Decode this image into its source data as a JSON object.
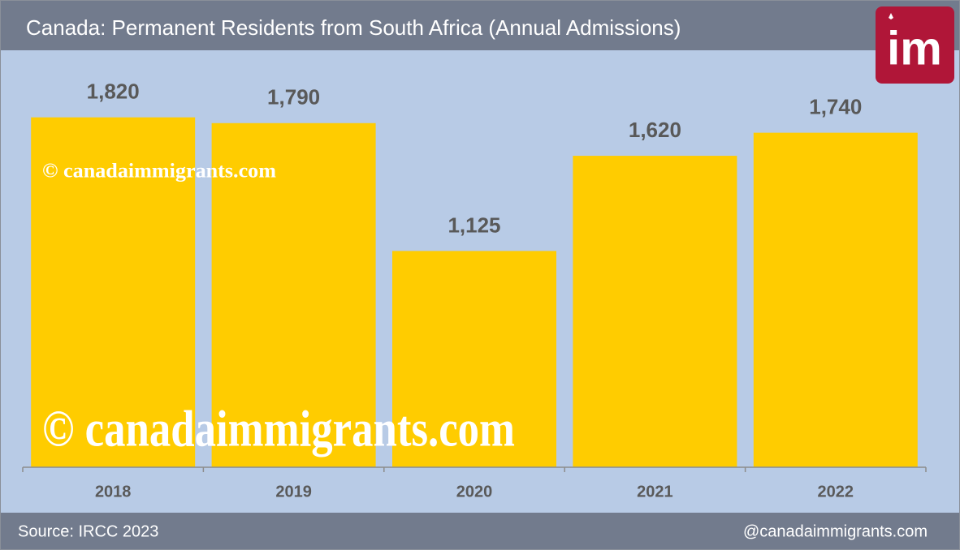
{
  "chart_data": {
    "type": "bar",
    "title": "Canada: Permanent Residents from South Africa (Annual Admissions)",
    "categories": [
      "2018",
      "2019",
      "2020",
      "2021",
      "2022"
    ],
    "values": [
      1820,
      1790,
      1125,
      1620,
      1740
    ],
    "value_labels": [
      "1,820",
      "1,790",
      "1,125",
      "1,620",
      "1,740"
    ],
    "color": "#ffcc00",
    "ylim": [
      0,
      2000
    ],
    "source": "Source: IRCC 2023",
    "credit": "@canadaimmigrants.com",
    "watermark": "© canadaimmigrants.com",
    "logo": "im"
  }
}
